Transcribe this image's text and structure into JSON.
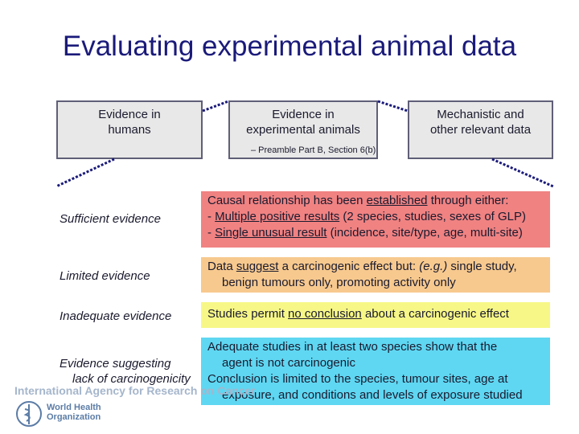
{
  "title": "Evaluating experimental animal data",
  "evidence_boxes": {
    "humans": [
      "Evidence in",
      "humans"
    ],
    "animals": [
      "Evidence in",
      "experimental animals"
    ],
    "mechanistic": [
      "Mechanistic and",
      "other relevant data"
    ]
  },
  "preamble_note": "– Preamble Part B, Section 6(b)",
  "bullet_glyph": "",
  "categories": {
    "sufficient": {
      "label": "Sufficient evidence",
      "color": "#f08282",
      "line1": "Causal relationship has been established through either:",
      "line2": "- Multiple positive results (2 species, studies, sexes of GLP)",
      "line3": "- Single unusual result (incidence, site/type, age, multi-site)"
    },
    "limited": {
      "label": "Limited evidence",
      "color": "#f7c98e",
      "line1": "Data suggest a carcinogenic effect but: (e.g.) single study,",
      "line2": "benign tumours only, promoting activity only"
    },
    "inadequate": {
      "label": "Inadequate evidence",
      "color": "#f7f787",
      "line1": "Studies permit no conclusion about a carcinogenic effect"
    },
    "suggesting_lack": {
      "label_line1": "Evidence suggesting",
      "label_line2": "lack of carcinogenicity",
      "color": "#5fd7f2",
      "line1": "Adequate studies in at least two species show that the",
      "line2": "agent is not carcinogenic",
      "line3": "Conclusion is limited to the species, tumour sites, age at",
      "line4": "exposure, and conditions and levels of exposure studied"
    }
  },
  "footer": {
    "iarc": "International Agency for Research on Cancer",
    "who_line1": "World Health",
    "who_line2": "Organization"
  }
}
